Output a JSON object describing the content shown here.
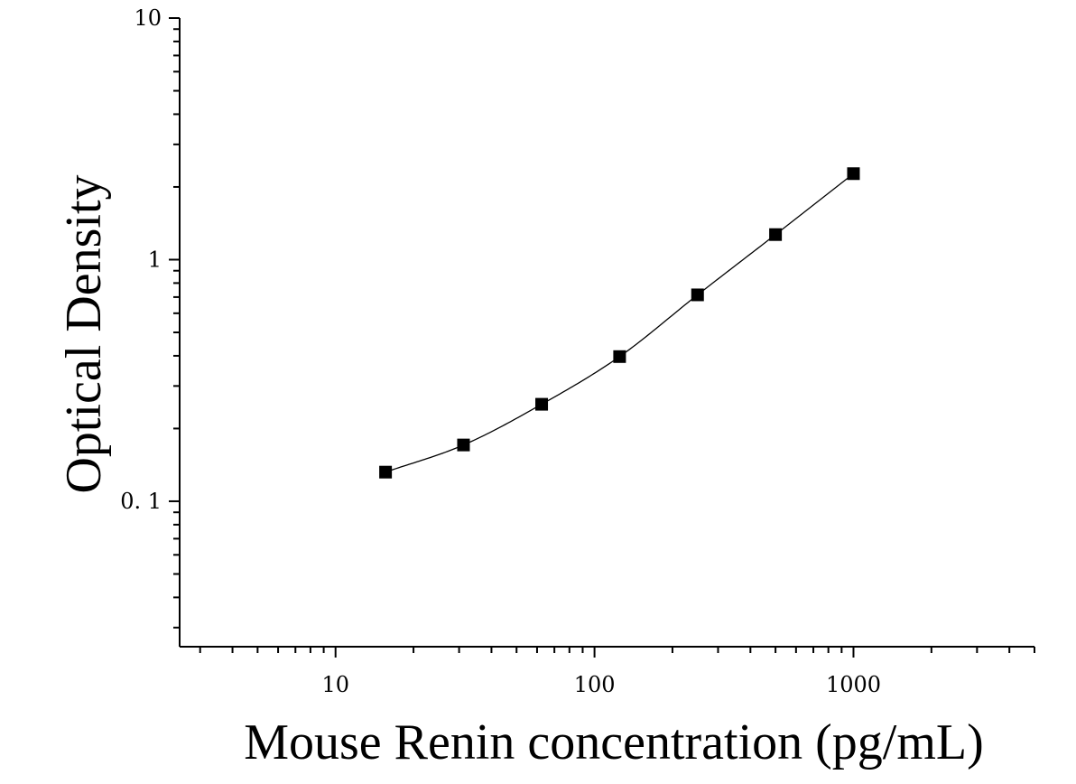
{
  "chart_data": {
    "type": "scatter",
    "title": "",
    "xlabel": "Mouse Renin concentration (pg/mL)",
    "ylabel": "Optical Density",
    "x_scale": "log",
    "y_scale": "log",
    "xlim": [
      2.5,
      5000
    ],
    "ylim": [
      0.025,
      10
    ],
    "x_major_ticks": [
      {
        "value": 10,
        "label": "10"
      },
      {
        "value": 100,
        "label": "100"
      },
      {
        "value": 1000,
        "label": "1000"
      }
    ],
    "y_major_ticks": [
      {
        "value": 0.1,
        "label": "0. 1"
      },
      {
        "value": 1,
        "label": "1"
      },
      {
        "value": 10,
        "label": "10"
      }
    ],
    "grid": false,
    "legend": "none",
    "marker_color": "#000000",
    "line_color": "#000000",
    "series": [
      {
        "marker": "square",
        "fit_line": true,
        "x": [
          15.6,
          31.2,
          62.5,
          125,
          250,
          500,
          1000
        ],
        "y": [
          0.132,
          0.171,
          0.252,
          0.397,
          0.715,
          1.27,
          2.27
        ]
      }
    ]
  }
}
